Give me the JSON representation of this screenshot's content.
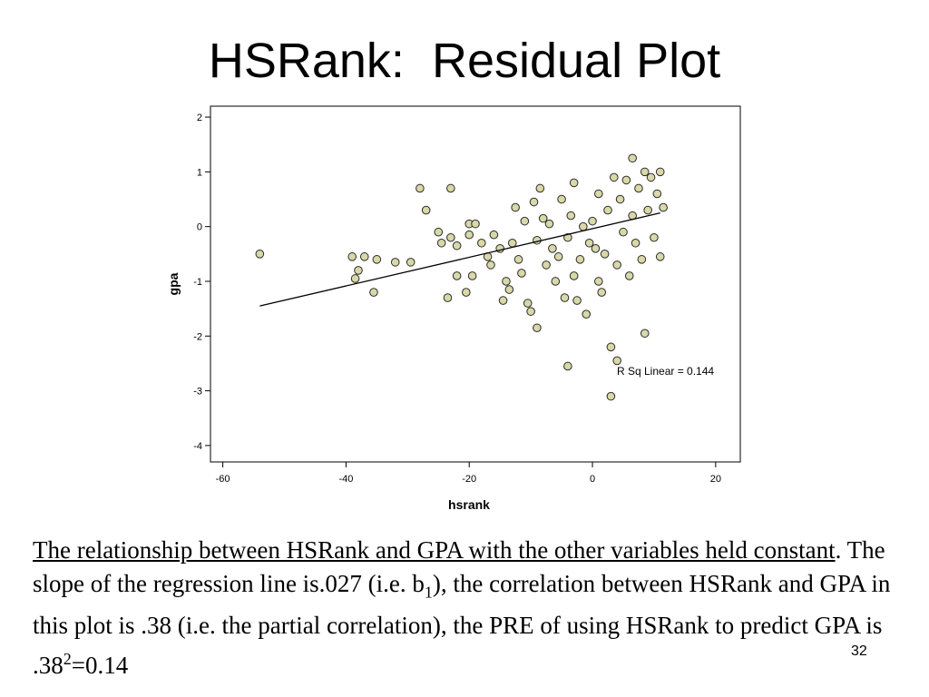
{
  "slide": {
    "title": "HSRank:  Residual Plot",
    "number": "32"
  },
  "chart_data": {
    "type": "scatter",
    "xlabel": "hsrank",
    "ylabel": "gpa",
    "xlim": [
      -62,
      24
    ],
    "ylim": [
      -4.3,
      2.2
    ],
    "xticks": [
      -60,
      -40,
      -20,
      0,
      20
    ],
    "yticks": [
      2,
      1,
      0,
      -1,
      -2,
      -3,
      -4
    ],
    "grid": false,
    "annotation": "R Sq Linear = 0.144",
    "fit_line": {
      "x": [
        -54,
        11
      ],
      "y": [
        -1.45,
        0.25
      ]
    },
    "point_color": "#d8d8a8",
    "points": [
      [
        -54,
        -0.5
      ],
      [
        -39,
        -0.55
      ],
      [
        -37,
        -0.55
      ],
      [
        -38,
        -0.8
      ],
      [
        -38.5,
        -0.95
      ],
      [
        -35,
        -0.6
      ],
      [
        -35.5,
        -1.2
      ],
      [
        -32,
        -0.65
      ],
      [
        -29.5,
        -0.65
      ],
      [
        -28,
        0.7
      ],
      [
        -27,
        0.3
      ],
      [
        -23,
        0.7
      ],
      [
        -25,
        -0.1
      ],
      [
        -24.5,
        -0.3
      ],
      [
        -23,
        -0.2
      ],
      [
        -22,
        -0.35
      ],
      [
        -22,
        -0.9
      ],
      [
        -20.5,
        -1.2
      ],
      [
        -23.5,
        -1.3
      ],
      [
        -20,
        0.05
      ],
      [
        -19,
        0.05
      ],
      [
        -20,
        -0.15
      ],
      [
        -19.5,
        -0.9
      ],
      [
        -18,
        -0.3
      ],
      [
        -17,
        -0.55
      ],
      [
        -16.5,
        -0.7
      ],
      [
        -16,
        -0.15
      ],
      [
        -15,
        -0.4
      ],
      [
        -14.5,
        -1.35
      ],
      [
        -14,
        -1.0
      ],
      [
        -13.5,
        -1.15
      ],
      [
        -13,
        -0.3
      ],
      [
        -12.5,
        0.35
      ],
      [
        -12,
        -0.6
      ],
      [
        -11.5,
        -0.85
      ],
      [
        -11,
        0.1
      ],
      [
        -10.5,
        -1.4
      ],
      [
        -10,
        -1.55
      ],
      [
        -9.5,
        0.45
      ],
      [
        -9,
        -0.25
      ],
      [
        -9,
        -1.85
      ],
      [
        -8.5,
        0.7
      ],
      [
        -8,
        0.15
      ],
      [
        -7.5,
        -0.7
      ],
      [
        -7,
        0.05
      ],
      [
        -6.5,
        -0.4
      ],
      [
        -6,
        -1.0
      ],
      [
        -5.5,
        -0.55
      ],
      [
        -5,
        0.5
      ],
      [
        -4.5,
        -1.3
      ],
      [
        -4,
        -0.2
      ],
      [
        -4,
        -2.55
      ],
      [
        -3.5,
        0.2
      ],
      [
        -3,
        0.8
      ],
      [
        -3,
        -0.9
      ],
      [
        -2.5,
        -1.35
      ],
      [
        -2,
        -0.6
      ],
      [
        -1.5,
        0.0
      ],
      [
        -1,
        -1.6
      ],
      [
        -0.5,
        -0.3
      ],
      [
        0,
        0.1
      ],
      [
        0.5,
        -0.4
      ],
      [
        1,
        0.6
      ],
      [
        1,
        -1.0
      ],
      [
        1.5,
        -1.2
      ],
      [
        2,
        -0.5
      ],
      [
        2.5,
        0.3
      ],
      [
        3,
        -2.2
      ],
      [
        3,
        -3.1
      ],
      [
        3.5,
        0.9
      ],
      [
        4,
        -0.7
      ],
      [
        4,
        -2.45
      ],
      [
        4.5,
        0.5
      ],
      [
        5,
        -0.1
      ],
      [
        5.5,
        0.85
      ],
      [
        6,
        -0.9
      ],
      [
        6.5,
        0.2
      ],
      [
        6.5,
        1.25
      ],
      [
        7,
        -0.3
      ],
      [
        7.5,
        0.7
      ],
      [
        8,
        -0.6
      ],
      [
        8.5,
        1.0
      ],
      [
        8.5,
        -1.95
      ],
      [
        9,
        0.3
      ],
      [
        9.5,
        0.9
      ],
      [
        10,
        -0.2
      ],
      [
        10.5,
        0.6
      ],
      [
        11,
        1.0
      ],
      [
        11,
        -0.55
      ],
      [
        11.5,
        0.35
      ]
    ]
  },
  "caption": {
    "part1": "The relationship between HSRank and GPA with the other variables held constant",
    "part2": ".  The slope of the regression line is.027 (i.e. b",
    "sub1": "1",
    "part3": "), the correlation between HSRank and GPA in this plot is .38 (i.e. the partial correlation), the PRE of using HSRank to predict GPA is .38",
    "sup1": "2",
    "part4": "=0.14"
  }
}
